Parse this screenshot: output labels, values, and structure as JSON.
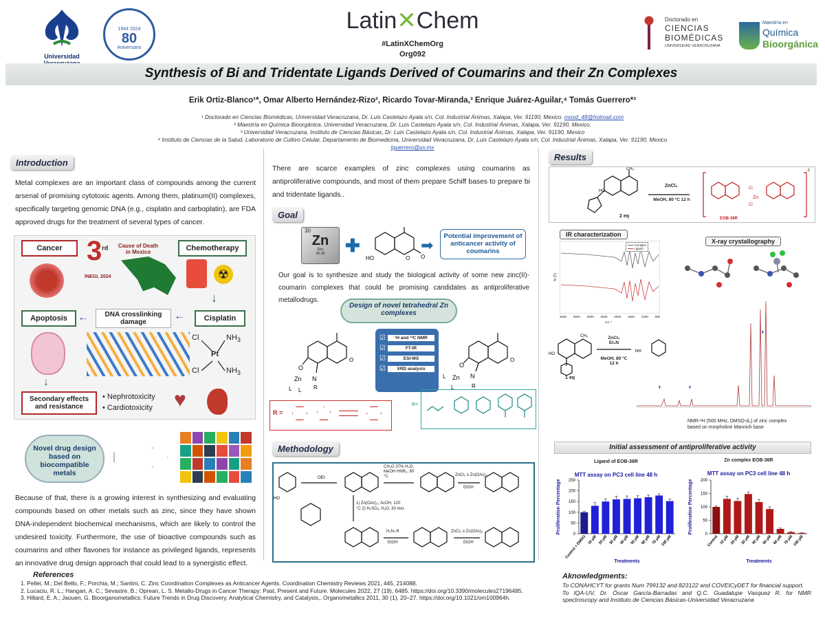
{
  "header": {
    "uv_name": "Universidad Veracruzana",
    "seal_80": "80",
    "seal_sub": "Aniversario",
    "seal_years": "1944 2024",
    "brand": "LatinXChem",
    "brand_left": "Latin",
    "brand_right": "Chem",
    "hashtag": "#LatinXChemOrg",
    "code": "Org092",
    "doct_line1": "Doctorado en",
    "doct_line2": "CIENCIAS",
    "doct_line3": "BIOMÉDICAS",
    "doct_line4": "UNIVERSIDAD VERACRUZANA",
    "mq_line1": "Maestría en",
    "mq_line2": "Química",
    "mq_line3": "Bioorgánica"
  },
  "title": "Synthesis of Bi and Tridentate Ligands Derived of Coumarins and their Zn Complexes",
  "authors": "Erik Ortiz-Blanco¹*, Omar Alberto Hernández-Rizo², Ricardo Tovar-Miranda,³ Enrique Juárez-Aguilar,⁴ Tomás Guerrero*³",
  "affiliations": [
    "¹ Doctorado en Ciencias Biomédicas, Universidad Veracruzana, Dr. Luis Castelazo Ayala s/n, Col. Industrial Ánimas, Xalapa, Ver. 91190, Mexico.",
    "² Maestría en Química Bioorgánica. Universidad Veracruzana, Dr. Luis Castelazo Ayala s/n, Col. Industrial Ánimas, Xalapa, Ver. 91190, Mexico.",
    "³ Universidad Veracruzana, Instituto de Ciencias Básicas, Dr. Luis Castelazo Ayala s/n, Col. Industrial Ánimas, Xalapa, Ver. 91190, Mexico",
    "⁴ Instituto de Ciencias de la Salud, Laboratorio de Cultivo Celular, Departamento de Biomedicina, Universidad Veracruzana, Dr. Luis Castelazo Ayala s/n, Col. Industrial Ánimas, Xalapa, Ver. 91190, Mexico"
  ],
  "email1": "mosd_48@hotmail.com",
  "email2": "tguerrero@uv.mx",
  "intro": {
    "label": "Introduction",
    "p1": "Metal complexes are an important class of compounds among the current arsenal of promising cytotoxic agents. Among them, platinum(II) complexes, specifically targeting genomic DNA (e.g., cisplatin and carboplatin), are FDA approved drugs for the treatment of several types of cancer.",
    "cancer": "Cancer",
    "rank_num": "3",
    "rank_sup": "rd",
    "cause": "Cause of Death in Mexico",
    "inegi": "INEGI, 2024",
    "chemo": "Chemotherapy",
    "apoptosis": "Apoptosis",
    "dna": "DNA crosslinking damage",
    "cisplatin": "Cisplatin",
    "cis_cl": "Cl",
    "cis_nh3": "NH",
    "cis_pt": "Pt",
    "secondary": "Secondary effects and resistance",
    "nephro": "• Nephrotoxicity",
    "cardio": "• Cardiotoxicity",
    "novel": "Novel drug design based on biocompatible metals",
    "p2": "Because of that, there is a growing interest in synthesizing and evaluating compounds based on other metals such as zinc, since they have shown DNA-independent biochemical mechanisms, which are likely to control the undesired toxicity. Furthermore, the use of bioactive compounds such as coumarins and other flavones for instance as privileged ligands, represents an innovative drug design approach that could lead to a synergistic effect."
  },
  "middle": {
    "p1": "There are scarce examples of zinc complexes using coumarins as antiproliferative compounds, and most of them prepare Schiff bases to prepare bi and tridentate ligands..",
    "goal_label": "Goal",
    "zn_num": "30",
    "zn_sym": "Zn",
    "zn_name": "Zinc",
    "zn_mass": "65.38",
    "potential": "Potential improvement of anticancer activity of coumarins",
    "goal_text": "Our goal is to synthesize and study the biological activity of some new zinc(II)-coumarin complexes that could be promising candidates as antiproliferative metallodrugs.",
    "design": "Design of novel tetrahedral Zn complexes",
    "checks": [
      "¹H and ¹³C NMR",
      "FT-IR",
      "ESI-MS",
      "XRD analysis"
    ],
    "r_label": "R =",
    "r2_label": "R=",
    "method_label": "Methodology",
    "step1": "CH₂O 37% H₂O, MeOH HNR₂, 60 °C",
    "step2": "ZnCl₂ o Zn(OAc)₂",
    "step2b": "EtOH",
    "step3": "1) Zn(OAc)₂, AcOH, 120 °C  2) H₂SO₄, H₂O, 30 min.",
    "step4": "H₂N–R",
    "step4b": "EtOH",
    "step5": "ZnCl₂ o Zn(OAc)₂",
    "step5b": "EtOH",
    "oet": "OEt",
    "ho": "HO"
  },
  "results": {
    "label": "Results",
    "rxn1_reagent": "ZnCl₂",
    "rxn1_cond": "MeOH, 80 °C 12 h",
    "rxn1_eq": "2 eq",
    "rxn1_product": "EOB-36R",
    "rxn1_charge": "-1",
    "ir_label": "IR characterization",
    "ir_legend": [
      "Complex",
      "Ligand"
    ],
    "ir_xticks": [
      "4000",
      "3500",
      "3000",
      "2500",
      "2000",
      "1500",
      "1000",
      "500"
    ],
    "ir_ylabel": "% (T)",
    "ir_xlabel": "cm⁻¹",
    "xray_label": "X-ray crystallography",
    "rxn2_reagent": "ZnCl₂ Et₃N",
    "rxn2_cond": "MeOH, 80 °C 12 h",
    "rxn2_eq": "1 eq",
    "nmr_caption": "NMR-¹H (500 MHz, DMSO-d₆) of zinc complex based on morpholine Mannich base",
    "antiprolif_label": "Initial assessment of antiproliferative activity"
  },
  "chart_data": [
    {
      "type": "bar",
      "title": "MTT assay on PC3 cell line 48 h",
      "suptitle": "Ligand of EOB-36R",
      "xlabel": "Treatments",
      "ylabel": "Proliferation Percentage",
      "ylim": [
        0,
        250
      ],
      "yticks": [
        0,
        50,
        100,
        150,
        200,
        250
      ],
      "categories": [
        "Control + DMSO",
        "10 µM",
        "20 µM",
        "30 µM",
        "40 µM",
        "50 µM",
        "60 µM",
        "70 µM",
        "100 µM"
      ],
      "values": [
        100,
        130,
        150,
        160,
        162,
        165,
        170,
        178,
        152
      ],
      "errors": [
        4,
        15,
        12,
        15,
        14,
        12,
        10,
        8,
        10
      ],
      "colors": [
        "#1b1b8f",
        "#2020d8",
        "#2020d8",
        "#2020d8",
        "#2020d8",
        "#2020d8",
        "#2020d8",
        "#2020d8",
        "#2020d8"
      ]
    },
    {
      "type": "bar",
      "title": "MTT assay on PC3 cell line 48 h",
      "suptitle": "Zn complex EOB-36R",
      "xlabel": "Treatments",
      "ylabel": "Proliferation Percentage",
      "ylim": [
        0,
        200
      ],
      "yticks": [
        0,
        50,
        100,
        150,
        200
      ],
      "categories": [
        "Control",
        "10 µM",
        "20 µM",
        "30 µM",
        "40 µM",
        "50 µM",
        "60 µM",
        "70 µM",
        "100 µM"
      ],
      "values": [
        100,
        130,
        122,
        148,
        118,
        92,
        18,
        6,
        3
      ],
      "errors": [
        4,
        10,
        10,
        8,
        10,
        8,
        3,
        2,
        1
      ],
      "colors": [
        "#8a1010",
        "#b01818",
        "#b01818",
        "#b01818",
        "#b01818",
        "#b01818",
        "#b01818",
        "#b01818",
        "#b01818"
      ]
    }
  ],
  "references": {
    "label": "References",
    "items": [
      "1. Pellei, M.; Del Bello, F.; Porchia, M.; Santini, C. Zinc Coordination Complexes as Anticancer Agents. Coordination Chemistry Reviews 2021, 445, 214088.",
      "2. Lucaciu, R. L.; Hangan, A. C.; Sevastre, B.; Oprean, L. S. Metallo-Drugs in Cancer Therapy: Past, Present and Future. Molecules 2022, 27 (19), 6485. https://doi.org/10.3390/molecules27196485.",
      "3. Hillard, E. A.; Jaouen, G. Bioorganometallics: Future Trends in Drug Discovery, Analytical Chemistry, and Catalysis,. Organometallics 2011, 30 (1), 20–27. https://doi.org/10.1021/om100964h."
    ]
  },
  "ack": {
    "label": "Aknowledgments:",
    "p1": "To CONAHCYT for grants Num 799132 and 823122 and COVEICyDET for financial support.",
    "p2": "To IQA-UV, Dr. Óscar García-Barradas and Q.C. Guadalupe Vasquez R. for NMR spectroscopy and Instituto de Ciencias Básicas-Universidad Veracruzana"
  }
}
